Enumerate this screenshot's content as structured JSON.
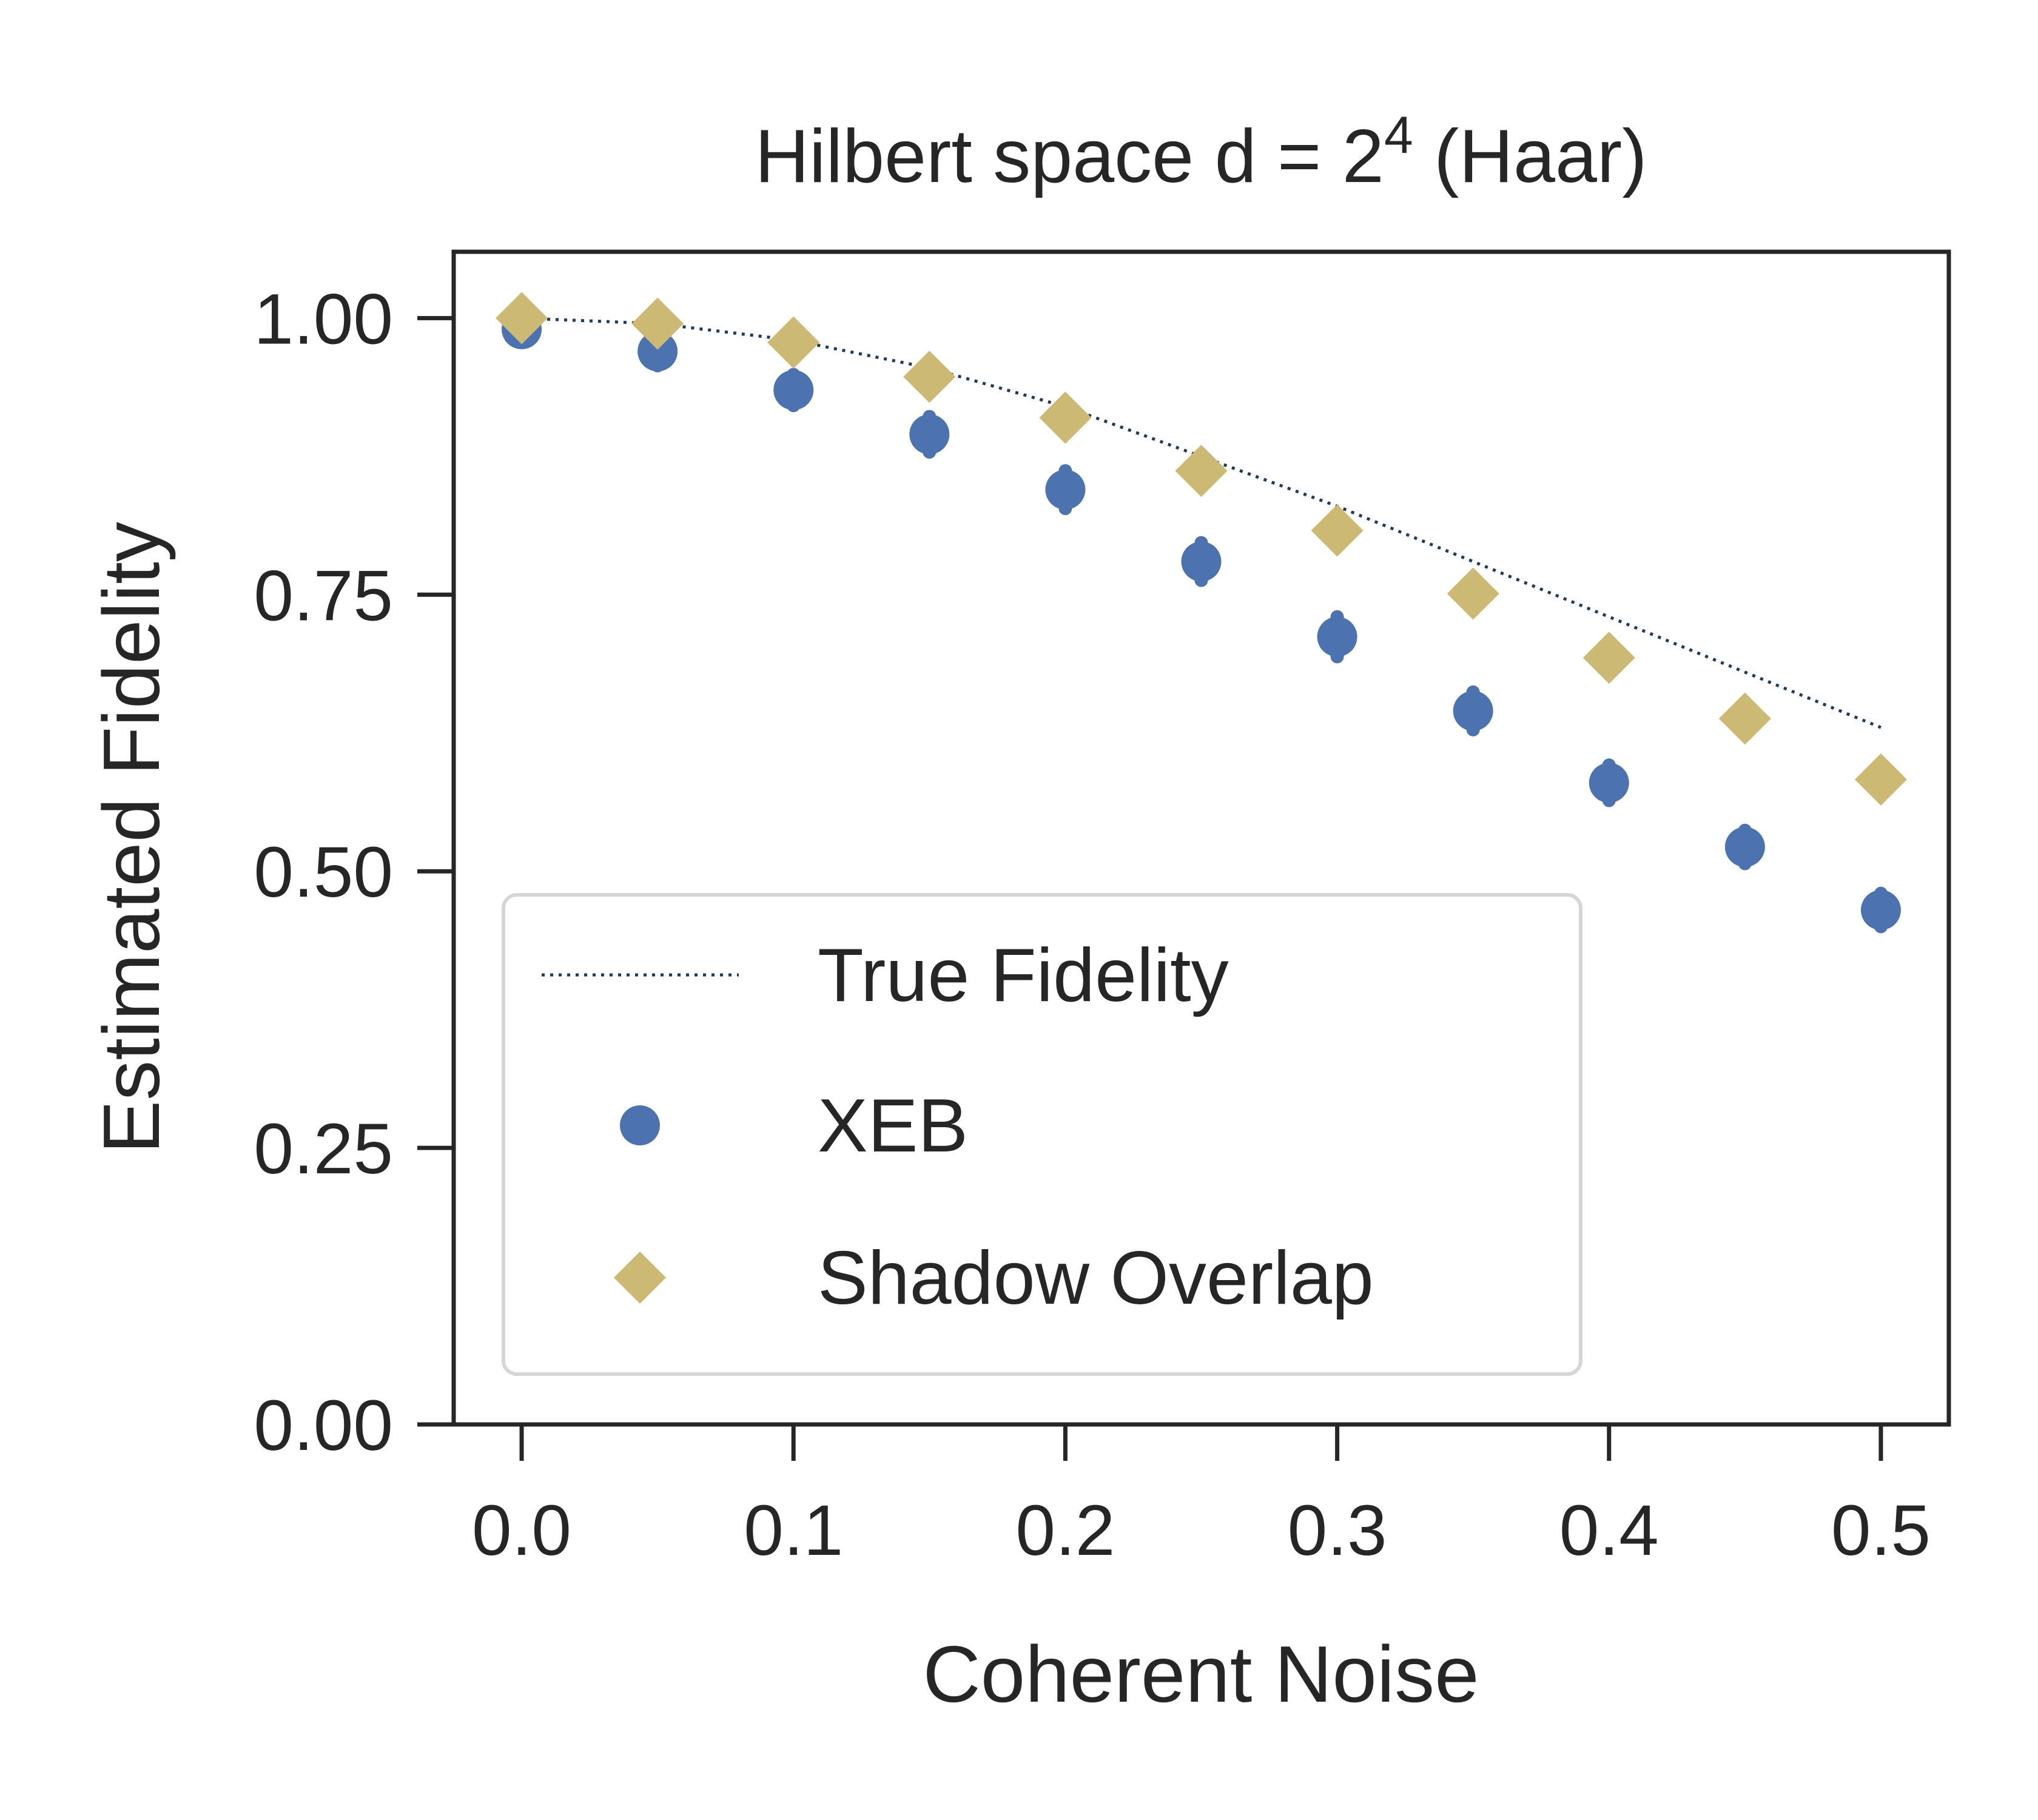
{
  "chart_data": {
    "type": "scatter",
    "title_parts": {
      "prefix": "Hilbert space d = ",
      "base": "2",
      "exponent": "4",
      "suffix": " (Haar)"
    },
    "xlabel": "Coherent Noise",
    "ylabel": "Estimated Fidelity",
    "xlim": [
      -0.025,
      0.525
    ],
    "ylim": [
      0.0,
      1.06
    ],
    "xticks": [
      0.0,
      0.1,
      0.2,
      0.3,
      0.4,
      0.5
    ],
    "xtick_labels": [
      "0.0",
      "0.1",
      "0.2",
      "0.3",
      "0.4",
      "0.5"
    ],
    "yticks": [
      0.0,
      0.25,
      0.5,
      0.75,
      1.0
    ],
    "ytick_labels": [
      "0.00",
      "0.25",
      "0.50",
      "0.75",
      "1.00"
    ],
    "grid": false,
    "legend_position": "lower-left",
    "x": [
      0.0,
      0.05,
      0.1,
      0.15,
      0.2,
      0.25,
      0.3,
      0.35,
      0.4,
      0.45,
      0.5
    ],
    "series": [
      {
        "name": "True Fidelity",
        "style": "dotted-line",
        "color": "#1f3b5c",
        "values": [
          1.0,
          0.995,
          0.98,
          0.955,
          0.92,
          0.875,
          0.83,
          0.78,
          0.73,
          0.68,
          0.63
        ]
      },
      {
        "name": "XEB",
        "style": "circle",
        "color": "#4c72b0",
        "values": [
          0.99,
          0.97,
          0.935,
          0.895,
          0.845,
          0.78,
          0.712,
          0.645,
          0.58,
          0.522,
          0.465
        ],
        "errors": [
          0.012,
          0.013,
          0.014,
          0.016,
          0.017,
          0.017,
          0.018,
          0.017,
          0.016,
          0.015,
          0.015
        ]
      },
      {
        "name": "Shadow Overlap",
        "style": "diamond",
        "color": "#ccb974",
        "values": [
          1.0,
          0.995,
          0.978,
          0.947,
          0.91,
          0.862,
          0.808,
          0.751,
          0.693,
          0.638,
          0.583
        ]
      }
    ]
  }
}
